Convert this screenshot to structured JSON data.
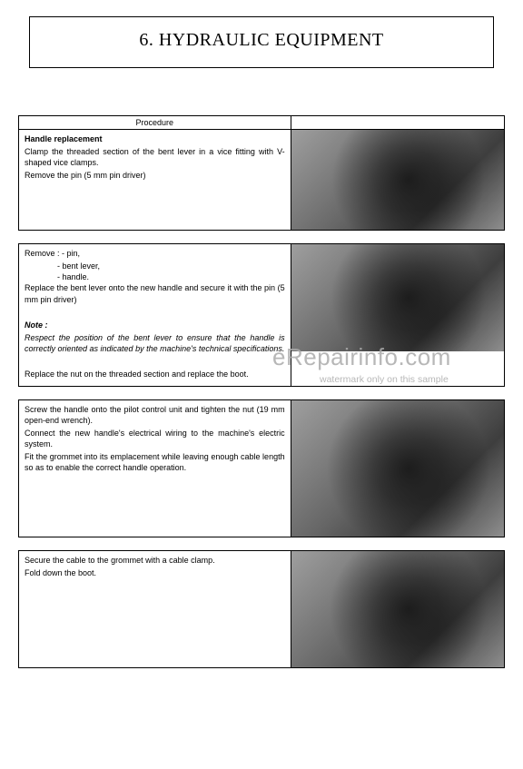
{
  "page": {
    "title": "6. HYDRAULIC EQUIPMENT",
    "procedure_header": "Procedure"
  },
  "steps": [
    {
      "heading": "Handle replacement",
      "lines": [
        "Clamp the threaded section of the bent lever in a vice fitting with V-shaped vice clamps.",
        "Remove the pin (5 mm pin driver)"
      ],
      "image_alt": "Handle clamped in vice, removing pin"
    },
    {
      "intro": "Remove :",
      "bullets": [
        "- pin,",
        "- bent lever,",
        "- handle."
      ],
      "lines": [
        "Replace the bent lever onto the new handle and secure it with the pin (5 mm pin driver)"
      ],
      "note_label": "Note :",
      "note_body": "Respect the position of the bent lever to ensure that the handle is correctly oriented as indicated by the machine's technical specifications.",
      "after_note": [
        "Replace the nut on the threaded section and replace the boot."
      ],
      "image_alt": "Bent lever and handle parts"
    },
    {
      "lines": [
        "Screw the handle onto the pilot control unit and tighten the nut (19 mm open-end wrench).",
        "Connect the new handle's electrical wiring to the machine's electric system.",
        "Fit the grommet into its emplacement while leaving enough cable length so as to enable the correct handle operation."
      ],
      "image_alt": "Handle mounted on pilot control unit with wiring"
    },
    {
      "lines": [
        "Secure the cable to the grommet with a cable clamp.",
        "Fold down the boot."
      ],
      "image_alt": "Cable secured with clamp, boot folded"
    }
  ],
  "watermark": {
    "main": "eRepairinfo.com",
    "sub": "watermark only on this sample"
  }
}
